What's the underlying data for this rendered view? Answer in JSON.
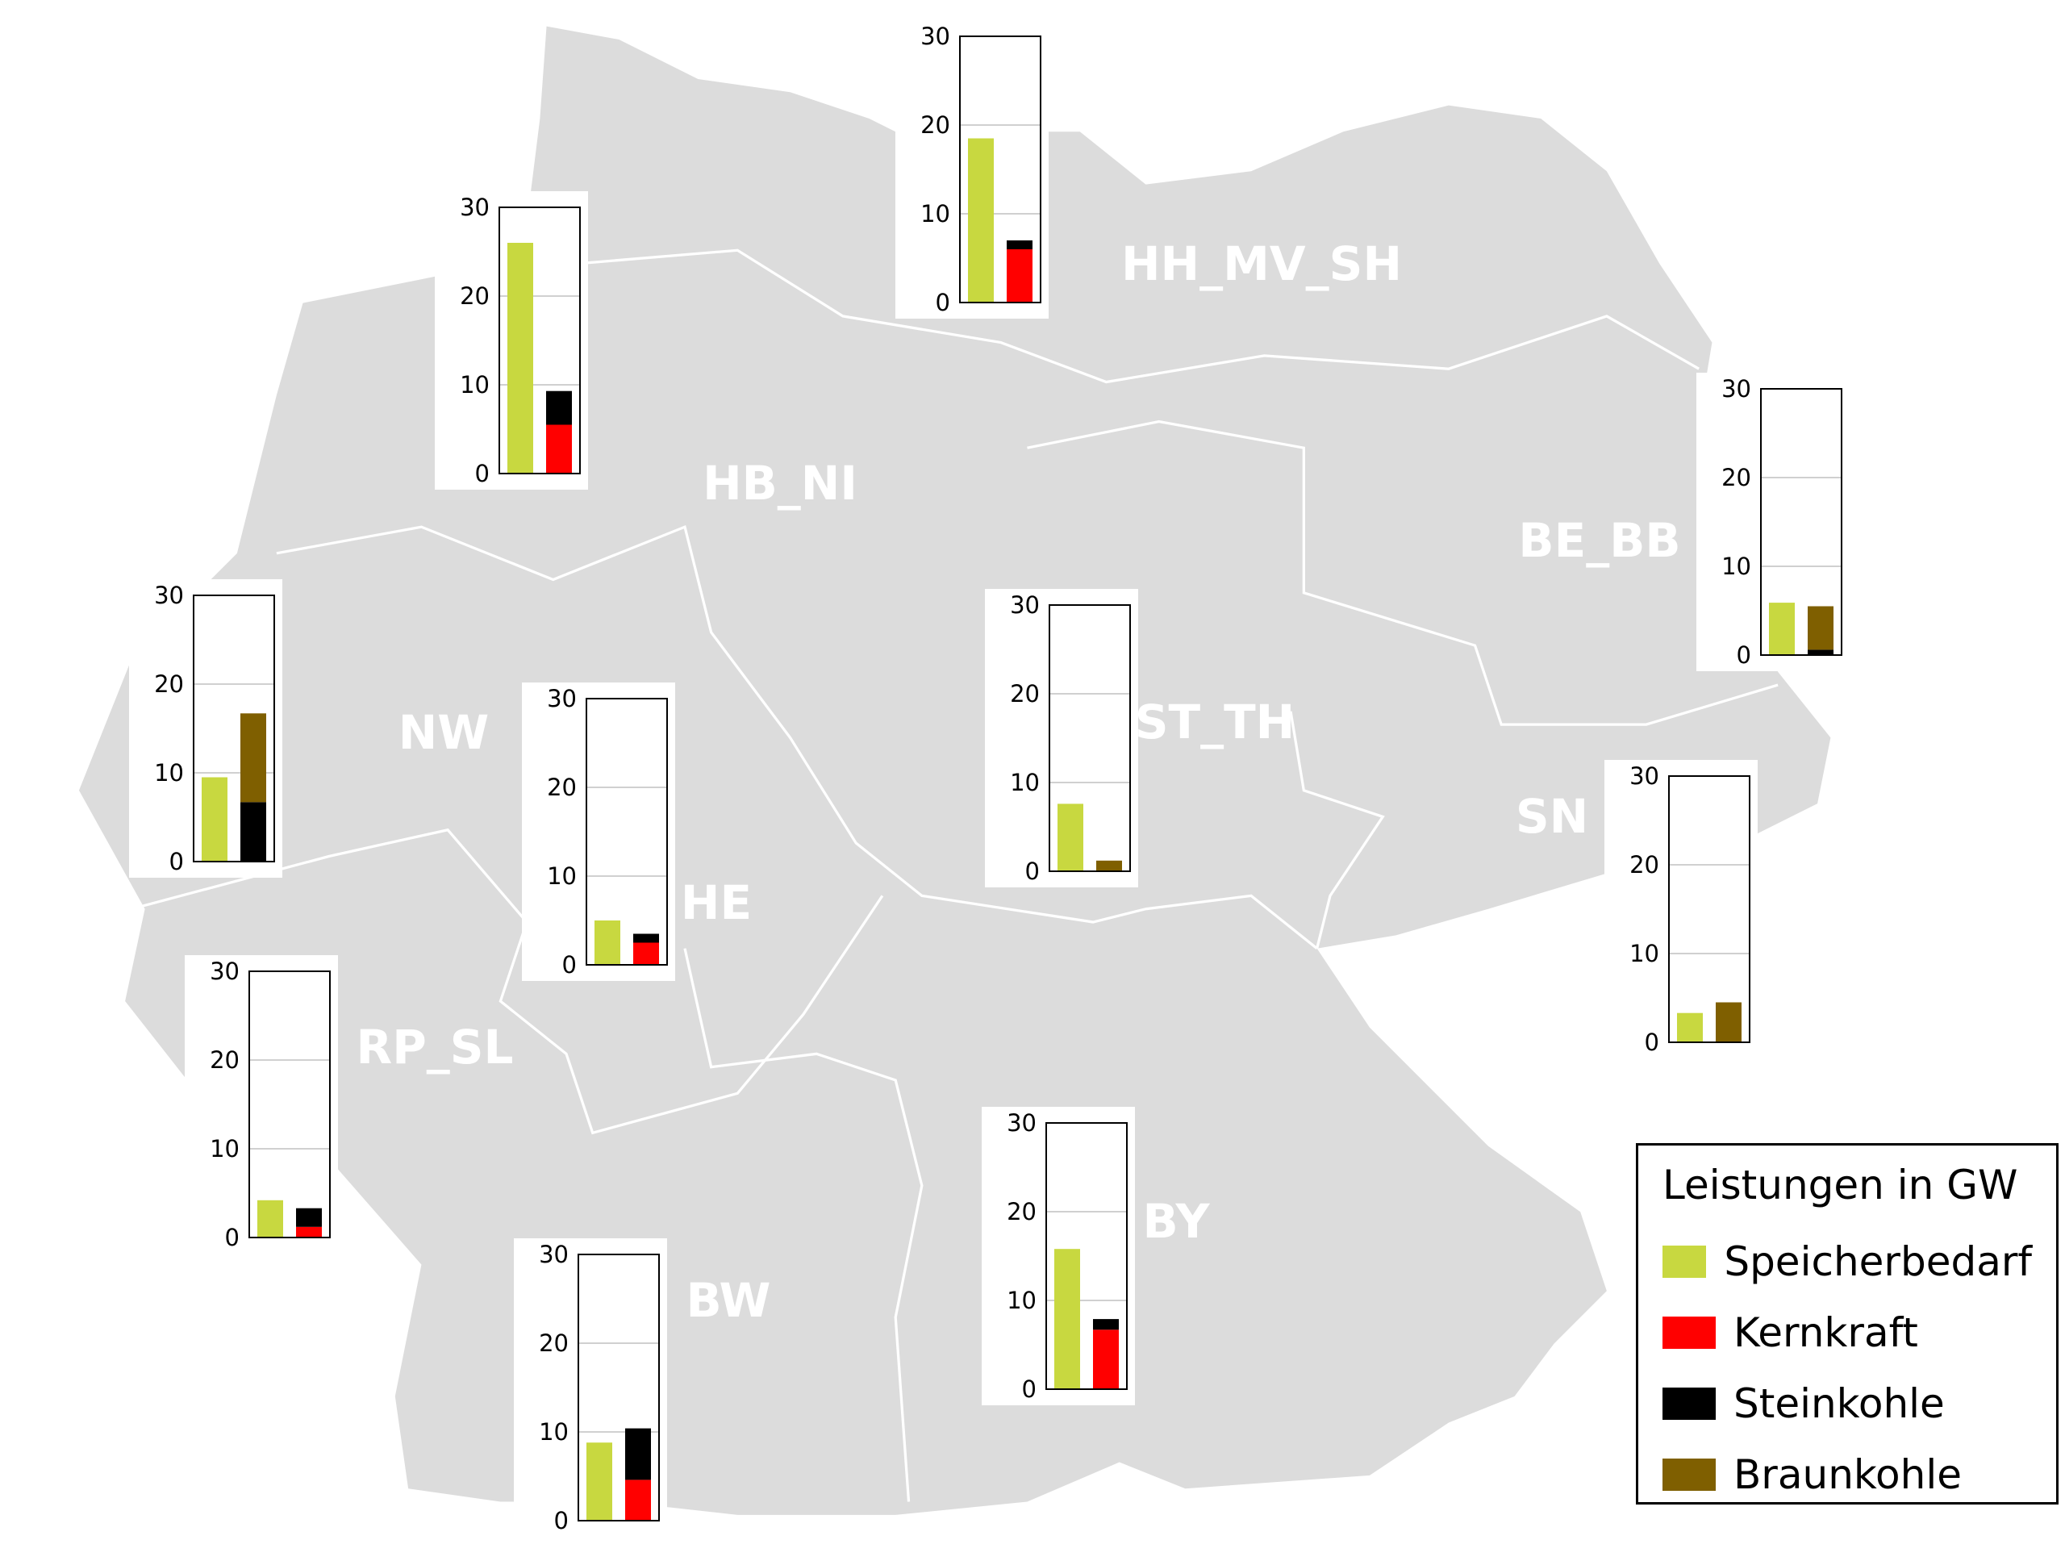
{
  "colors": {
    "Speicherbedarf": "#c8d840",
    "Kernkraft": "#ff0000",
    "Steinkohle": "#000000",
    "Braunkohle": "#7f5f00",
    "map": "#dcdcdc"
  },
  "legend": {
    "title": "Leistungen in GW",
    "items": [
      "Speicherbedarf",
      "Kernkraft",
      "Steinkohle",
      "Braunkohle"
    ]
  },
  "chart_data": {
    "type": "bar",
    "ylim": [
      0,
      30
    ],
    "yticks": [
      "0",
      "10",
      "20",
      "30"
    ],
    "stack_order": [
      "Kernkraft",
      "Steinkohle",
      "Braunkohle"
    ],
    "regions": [
      {
        "label": "HH_MV_SH",
        "Speicherbedarf": 18.5,
        "Kernkraft": 6.0,
        "Steinkohle": 1.0,
        "Braunkohle": 0
      },
      {
        "label": "HB_NI",
        "Speicherbedarf": 26.0,
        "Kernkraft": 5.5,
        "Steinkohle": 3.8,
        "Braunkohle": 0
      },
      {
        "label": "NW",
        "Speicherbedarf": 9.5,
        "Kernkraft": 0,
        "Steinkohle": 6.7,
        "Braunkohle": 10.0
      },
      {
        "label": "HE",
        "Speicherbedarf": 5.0,
        "Kernkraft": 2.5,
        "Steinkohle": 1.0,
        "Braunkohle": 0
      },
      {
        "label": "ST_TH",
        "Speicherbedarf": 7.6,
        "Kernkraft": 0,
        "Steinkohle": 0,
        "Braunkohle": 1.2
      },
      {
        "label": "BE_BB",
        "Speicherbedarf": 5.9,
        "Kernkraft": 0,
        "Steinkohle": 0.6,
        "Braunkohle": 4.9
      },
      {
        "label": "SN",
        "Speicherbedarf": 3.3,
        "Kernkraft": 0,
        "Steinkohle": 0,
        "Braunkohle": 4.5
      },
      {
        "label": "RP_SL",
        "Speicherbedarf": 4.2,
        "Kernkraft": 1.2,
        "Steinkohle": 2.1,
        "Braunkohle": 0
      },
      {
        "label": "BW",
        "Speicherbedarf": 8.8,
        "Kernkraft": 4.6,
        "Steinkohle": 5.8,
        "Braunkohle": 0
      },
      {
        "label": "BY",
        "Speicherbedarf": 15.8,
        "Kernkraft": 6.7,
        "Steinkohle": 1.2,
        "Braunkohle": 0
      }
    ]
  }
}
